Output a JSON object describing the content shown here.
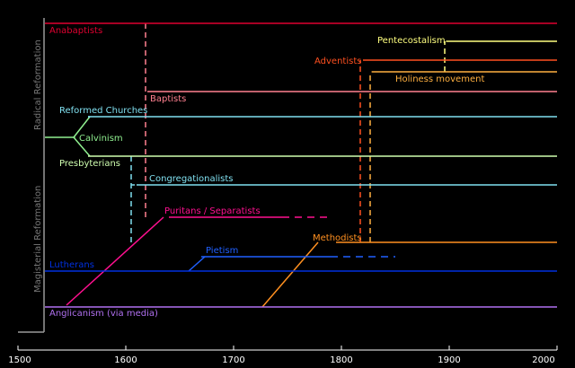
{
  "chart_data": {
    "type": "timeline",
    "x_axis": {
      "min": 1500,
      "max": 2000,
      "ticks": [
        1500,
        1600,
        1700,
        1800,
        1900,
        2000
      ]
    },
    "group_labels": {
      "radical": "Radical Reformation",
      "magisterial": "Magisterial Reformation"
    },
    "branches": [
      {
        "id": "anabaptists",
        "label": "Anabaptists",
        "color": "#e00030",
        "start": 1525,
        "end": 2000,
        "dashed_from": null
      },
      {
        "id": "reformed-churches",
        "label": "Reformed Churches",
        "color": "#80e0f0",
        "start": 1565,
        "end": 2000,
        "dashed_from": null
      },
      {
        "id": "calvinism",
        "label": "Calvinism",
        "color": "#90f090",
        "start": 1525,
        "end": 1553,
        "dashed_from": null
      },
      {
        "id": "presbyterians",
        "label": "Presbyterians",
        "color": "#d0ffb0",
        "start": 1565,
        "end": 2000,
        "dashed_from": null
      },
      {
        "id": "congregationalists",
        "label": "Congregationalists",
        "color": "#80e0f0",
        "start": 1610,
        "end": 2000,
        "dashed_from": null
      },
      {
        "id": "baptists",
        "label": "Baptists",
        "color": "#ff8090",
        "start": 1620,
        "end": 2000,
        "dashed_from": null
      },
      {
        "id": "puritans",
        "label": "Puritans / Separatists",
        "color": "#ff1090",
        "start": 1640,
        "end": 1790,
        "dashed_from": 1745
      },
      {
        "id": "lutherans",
        "label": "Lutherans",
        "color": "#0030e0",
        "start": 1525,
        "end": 2000,
        "dashed_from": null
      },
      {
        "id": "pietism",
        "label": "Pietism",
        "color": "#2060ff",
        "start": 1670,
        "end": 1850,
        "dashed_from": 1790
      },
      {
        "id": "anglicanism",
        "label": "Anglicanism (via media)",
        "color": "#b070f0",
        "start": 1525,
        "end": 2000,
        "dashed_from": null
      },
      {
        "id": "methodists",
        "label": "Methodists",
        "color": "#ff9020",
        "start": 1795,
        "end": 2000,
        "dashed_from": null
      },
      {
        "id": "adventists",
        "label": "Adventists",
        "color": "#ff5020",
        "start": 1820,
        "end": 2000,
        "dashed_from": null
      },
      {
        "id": "holiness",
        "label": "Holiness movement",
        "color": "#ffb040",
        "start": 1828,
        "end": 2000,
        "dashed_from": null
      },
      {
        "id": "pentecostalism",
        "label": "Pentecostalism",
        "color": "#ffff80",
        "start": 1897,
        "end": 2000,
        "dashed_from": null
      }
    ]
  }
}
